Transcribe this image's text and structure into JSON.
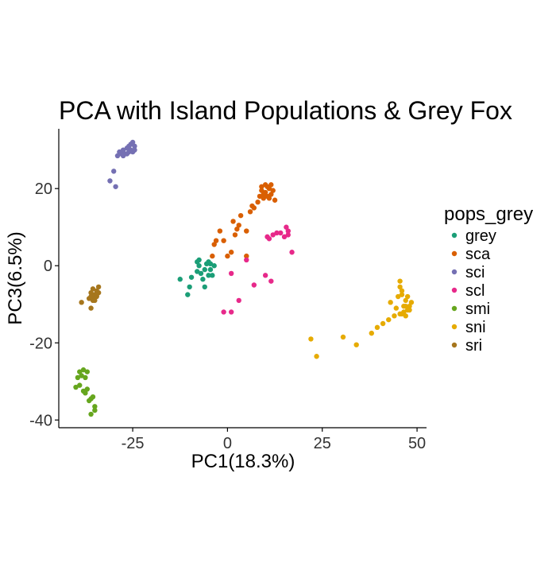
{
  "chart_data": {
    "type": "scatter",
    "title": "PCA with Island Populations & Grey Fox",
    "xlabel": "PC1(18.3%)",
    "ylabel": "PC3(6.5%)",
    "xlim": [
      -44.5,
      52.5
    ],
    "ylim": [
      -42,
      35.5
    ],
    "x_ticks": [
      -25,
      0,
      25,
      50
    ],
    "y_ticks": [
      20,
      0,
      -20,
      -40
    ],
    "x_tick_labels": [
      "-25",
      "0",
      "25",
      "50"
    ],
    "y_tick_labels": [
      "20",
      "0",
      "-20",
      "-40"
    ],
    "grid": false,
    "legend": {
      "title": "pops_grey",
      "placement": "right"
    },
    "series": [
      {
        "name": "grey",
        "color": "#1B9E77",
        "points": [
          [
            -12.5,
            -3.5
          ],
          [
            -10.5,
            -7.5
          ],
          [
            -10.0,
            -5.5
          ],
          [
            -9.5,
            -3.0
          ],
          [
            -8.0,
            -1.5
          ],
          [
            -7.5,
            0.0
          ],
          [
            -7.5,
            1.5
          ],
          [
            -7.0,
            -2.0
          ],
          [
            -6.5,
            -3.5
          ],
          [
            -6.0,
            -5.5
          ],
          [
            -6.0,
            -1.0
          ],
          [
            -5.5,
            0.5
          ],
          [
            -5.0,
            -2.5
          ],
          [
            -5.0,
            1.0
          ],
          [
            -4.5,
            -1.0
          ],
          [
            -4.0,
            -2.5
          ],
          [
            -3.5,
            0.0
          ],
          [
            -8.0,
            1.0
          ],
          [
            -4.5,
            0.5
          ]
        ]
      },
      {
        "name": "sca",
        "color": "#D95F02",
        "points": [
          [
            -4.0,
            2.5
          ],
          [
            -3.5,
            5.5
          ],
          [
            -3.0,
            6.5
          ],
          [
            -2.0,
            9.0
          ],
          [
            -1.0,
            6.5
          ],
          [
            0.0,
            2.5
          ],
          [
            1.0,
            3.5
          ],
          [
            1.5,
            11.5
          ],
          [
            2.0,
            8.0
          ],
          [
            2.5,
            9.5
          ],
          [
            3.0,
            10.5
          ],
          [
            3.5,
            13.0
          ],
          [
            5.0,
            2.5
          ],
          [
            5.0,
            9.0
          ],
          [
            6.0,
            14.0
          ],
          [
            6.5,
            15.5
          ],
          [
            7.0,
            15.0
          ],
          [
            8.0,
            16.5
          ],
          [
            8.5,
            18.0
          ],
          [
            9.0,
            19.5
          ],
          [
            9.0,
            20.5
          ],
          [
            9.5,
            17.5
          ],
          [
            10.0,
            19.0
          ],
          [
            10.0,
            21.0
          ],
          [
            10.5,
            18.0
          ],
          [
            11.0,
            20.0
          ],
          [
            11.5,
            21.0
          ],
          [
            11.5,
            18.5
          ],
          [
            12.0,
            19.5
          ],
          [
            12.5,
            17.0
          ],
          [
            11.0,
            17.5
          ],
          [
            10.5,
            20.5
          ],
          [
            9.5,
            18.5
          ]
        ]
      },
      {
        "name": "sci",
        "color": "#7570B3",
        "points": [
          [
            -31.0,
            22.0
          ],
          [
            -30.0,
            24.5
          ],
          [
            -29.5,
            20.5
          ],
          [
            -29.0,
            28.5
          ],
          [
            -28.5,
            29.5
          ],
          [
            -28.0,
            29.0
          ],
          [
            -27.5,
            30.0
          ],
          [
            -27.0,
            29.0
          ],
          [
            -26.5,
            30.5
          ],
          [
            -26.0,
            29.5
          ],
          [
            -26.0,
            31.0
          ],
          [
            -25.5,
            30.0
          ],
          [
            -25.0,
            32.0
          ],
          [
            -25.0,
            29.5
          ],
          [
            -24.5,
            31.0
          ],
          [
            -24.5,
            30.0
          ],
          [
            -26.5,
            29.0
          ],
          [
            -27.5,
            28.5
          ],
          [
            -25.5,
            31.5
          ]
        ]
      },
      {
        "name": "scl",
        "color": "#E7298A",
        "points": [
          [
            -1.0,
            -12.0
          ],
          [
            1.0,
            -12.0
          ],
          [
            1.0,
            -2.0
          ],
          [
            3.0,
            -9.0
          ],
          [
            5.0,
            1.5
          ],
          [
            7.0,
            -5.0
          ],
          [
            10.0,
            -2.5
          ],
          [
            10.5,
            7.5
          ],
          [
            11.0,
            7.0
          ],
          [
            11.5,
            -4.0
          ],
          [
            12.0,
            8.0
          ],
          [
            13.0,
            8.5
          ],
          [
            14.0,
            8.5
          ],
          [
            15.5,
            10.0
          ],
          [
            16.0,
            8.0
          ],
          [
            16.0,
            9.0
          ],
          [
            17.0,
            3.5
          ],
          [
            15.0,
            7.5
          ]
        ]
      },
      {
        "name": "smi",
        "color": "#66A61E",
        "points": [
          [
            -40.0,
            -31.5
          ],
          [
            -39.5,
            -29.0
          ],
          [
            -39.0,
            -27.5
          ],
          [
            -38.5,
            -28.5
          ],
          [
            -38.0,
            -27.0
          ],
          [
            -37.5,
            -29.0
          ],
          [
            -37.0,
            -27.5
          ],
          [
            -37.0,
            -32.0
          ],
          [
            -36.5,
            -35.0
          ],
          [
            -36.0,
            -38.5
          ],
          [
            -35.5,
            -34.0
          ],
          [
            -35.0,
            -36.5
          ],
          [
            -35.0,
            -37.5
          ],
          [
            -38.0,
            -32.5
          ],
          [
            -39.0,
            -31.0
          ],
          [
            -37.5,
            -33.0
          ],
          [
            -36.0,
            -34.5
          ]
        ]
      },
      {
        "name": "sni",
        "color": "#E6AB02",
        "points": [
          [
            22.0,
            -19.0
          ],
          [
            23.5,
            -23.5
          ],
          [
            30.5,
            -18.5
          ],
          [
            34.0,
            -20.5
          ],
          [
            38.0,
            -17.5
          ],
          [
            39.5,
            -16.0
          ],
          [
            41.0,
            -15.0
          ],
          [
            42.5,
            -14.0
          ],
          [
            43.0,
            -9.5
          ],
          [
            44.0,
            -13.0
          ],
          [
            44.5,
            -11.0
          ],
          [
            45.0,
            -8.0
          ],
          [
            45.5,
            -5.5
          ],
          [
            45.5,
            -4.0
          ],
          [
            46.0,
            -6.5
          ],
          [
            46.0,
            -12.5
          ],
          [
            46.5,
            -10.5
          ],
          [
            47.0,
            -9.0
          ],
          [
            47.0,
            -13.0
          ],
          [
            47.5,
            -8.0
          ],
          [
            48.0,
            -10.5
          ],
          [
            48.0,
            -11.5
          ],
          [
            48.5,
            -9.5
          ],
          [
            46.5,
            -12.0
          ],
          [
            47.5,
            -11.5
          ],
          [
            45.5,
            -12.5
          ],
          [
            46.0,
            -7.5
          ],
          [
            47.0,
            -10.5
          ]
        ]
      },
      {
        "name": "sri",
        "color": "#A6761D",
        "points": [
          [
            -38.5,
            -9.5
          ],
          [
            -36.5,
            -8.5
          ],
          [
            -36.0,
            -7.0
          ],
          [
            -36.0,
            -11.0
          ],
          [
            -35.5,
            -6.0
          ],
          [
            -35.5,
            -8.0
          ],
          [
            -35.0,
            -7.5
          ],
          [
            -35.0,
            -9.0
          ],
          [
            -34.5,
            -6.5
          ],
          [
            -34.5,
            -8.0
          ],
          [
            -34.0,
            -5.5
          ],
          [
            -34.0,
            -7.0
          ],
          [
            -35.5,
            -9.0
          ],
          [
            -36.0,
            -8.0
          ],
          [
            -34.5,
            -7.5
          ]
        ]
      }
    ]
  }
}
